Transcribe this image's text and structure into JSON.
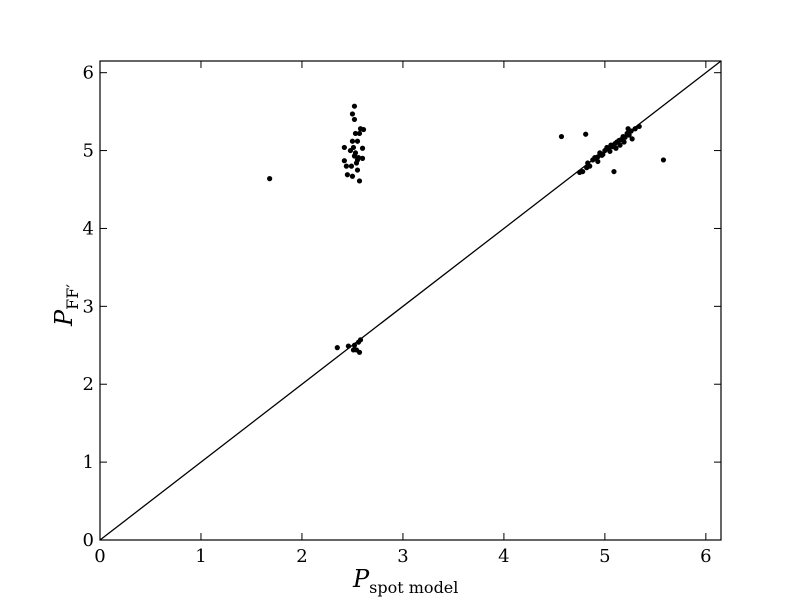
{
  "chart_data": {
    "type": "scatter",
    "xlabel": "P",
    "xlabel_sub": "spot model",
    "ylabel": "P",
    "ylabel_sub": "FF′",
    "xlim": [
      0,
      6.15
    ],
    "ylim": [
      0,
      6.15
    ],
    "xticks": [
      0,
      1,
      2,
      3,
      4,
      5,
      6
    ],
    "yticks": [
      0,
      1,
      2,
      3,
      4,
      5,
      6
    ],
    "reference_line": {
      "x": [
        0,
        6.15
      ],
      "y": [
        0,
        6.15
      ]
    },
    "grid": false,
    "legend": "none",
    "marker_color": "#000000",
    "series": [
      {
        "points": [
          [
            1.68,
            4.64
          ],
          [
            2.52,
            5.57
          ],
          [
            2.5,
            5.47
          ],
          [
            2.52,
            5.4
          ],
          [
            2.58,
            5.28
          ],
          [
            2.61,
            5.27
          ],
          [
            2.53,
            5.22
          ],
          [
            2.57,
            5.22
          ],
          [
            2.5,
            5.12
          ],
          [
            2.55,
            5.12
          ],
          [
            2.42,
            5.04
          ],
          [
            2.51,
            5.04
          ],
          [
            2.6,
            5.03
          ],
          [
            2.48,
            5.0
          ],
          [
            2.53,
            4.97
          ],
          [
            2.52,
            4.93
          ],
          [
            2.56,
            4.91
          ],
          [
            2.6,
            4.9
          ],
          [
            2.55,
            4.88
          ],
          [
            2.42,
            4.87
          ],
          [
            2.54,
            4.84
          ],
          [
            2.44,
            4.8
          ],
          [
            2.49,
            4.8
          ],
          [
            2.55,
            4.75
          ],
          [
            2.45,
            4.69
          ],
          [
            2.5,
            4.67
          ],
          [
            2.57,
            4.61
          ],
          [
            2.35,
            2.47
          ],
          [
            2.46,
            2.49
          ],
          [
            2.52,
            2.5
          ],
          [
            2.56,
            2.54
          ],
          [
            2.58,
            2.57
          ],
          [
            2.51,
            2.44
          ],
          [
            2.54,
            2.44
          ],
          [
            2.57,
            2.41
          ],
          [
            4.57,
            5.18
          ],
          [
            4.81,
            5.21
          ],
          [
            5.58,
            4.88
          ],
          [
            5.09,
            4.73
          ],
          [
            4.75,
            4.72
          ],
          [
            4.78,
            4.73
          ],
          [
            4.82,
            4.78
          ],
          [
            4.85,
            4.8
          ],
          [
            4.83,
            4.84
          ],
          [
            4.88,
            4.88
          ],
          [
            4.91,
            4.9
          ],
          [
            4.93,
            4.92
          ],
          [
            4.95,
            4.97
          ],
          [
            4.98,
            4.95
          ],
          [
            5.0,
            5.0
          ],
          [
            5.02,
            5.04
          ],
          [
            5.04,
            5.02
          ],
          [
            5.06,
            5.07
          ],
          [
            5.08,
            5.05
          ],
          [
            5.1,
            5.09
          ],
          [
            5.12,
            5.11
          ],
          [
            5.14,
            5.13
          ],
          [
            5.16,
            5.14
          ],
          [
            5.18,
            5.18
          ],
          [
            5.2,
            5.17
          ],
          [
            5.22,
            5.22
          ],
          [
            5.24,
            5.2
          ],
          [
            5.26,
            5.25
          ],
          [
            5.3,
            5.28
          ],
          [
            5.34,
            5.31
          ],
          [
            5.27,
            5.15
          ],
          [
            5.15,
            5.07
          ],
          [
            5.05,
            4.99
          ],
          [
            4.97,
            4.94
          ],
          [
            4.9,
            4.91
          ],
          [
            5.23,
            5.28
          ],
          [
            5.11,
            5.03
          ],
          [
            4.93,
            4.86
          ],
          [
            5.19,
            5.11
          ]
        ]
      }
    ]
  }
}
